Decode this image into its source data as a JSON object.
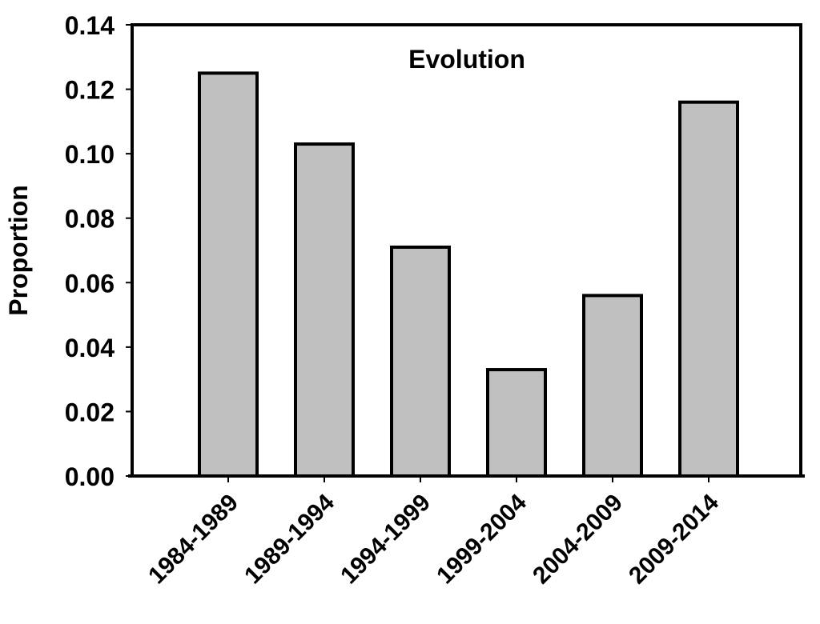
{
  "chart_data": {
    "type": "bar",
    "title": "Evolution",
    "xlabel": "",
    "ylabel": "Proportion",
    "categories": [
      "1984-1989",
      "1989-1994",
      "1994-1999",
      "1999-2004",
      "2004-2009",
      "2009-2014"
    ],
    "values": [
      0.125,
      0.103,
      0.071,
      0.033,
      0.056,
      0.116
    ],
    "ylim": [
      0,
      0.14
    ],
    "yticks": [
      "0.00",
      "0.02",
      "0.04",
      "0.06",
      "0.08",
      "0.10",
      "0.12",
      "0.14"
    ],
    "grid": false,
    "legend": "none",
    "bar_color": "#c0c0c0",
    "edge_color": "#000000"
  }
}
